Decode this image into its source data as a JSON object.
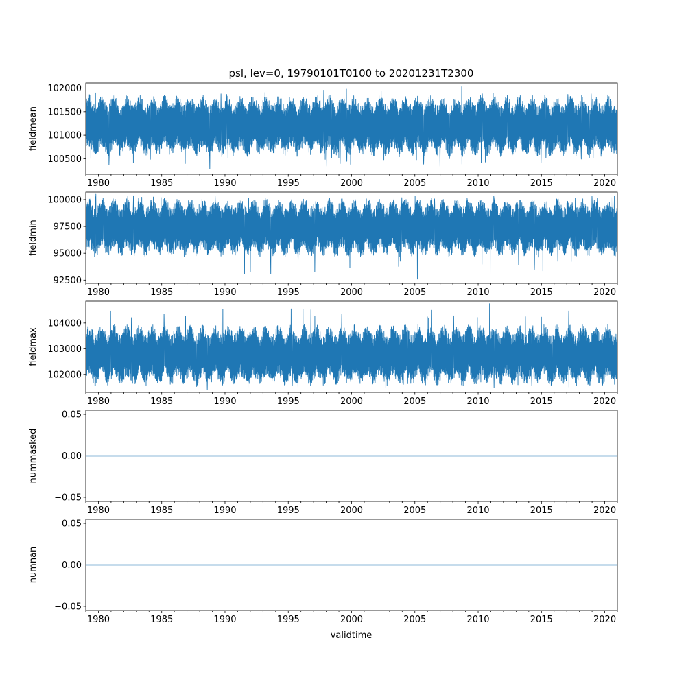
{
  "figure": {
    "title": "psl, lev=0, 19790101T0100 to 20201231T2300",
    "xlabel": "validtime"
  },
  "colors": {
    "line": "#1f77b4",
    "axes": "#000000",
    "background": "#ffffff"
  },
  "chart_data": [
    {
      "id": "fieldmean",
      "type": "line",
      "ylabel": "fieldmean",
      "xlim": [
        1979.0,
        2021.0
      ],
      "ylim": [
        100170,
        102110
      ],
      "yticks": [
        100500,
        101000,
        101500,
        102000
      ],
      "ytick_labels": [
        "100500",
        "101000",
        "101500",
        "102000"
      ],
      "xticks": [
        1980,
        1985,
        1990,
        1995,
        2000,
        2005,
        2010,
        2015,
        2020
      ],
      "xtick_labels": [
        "1980",
        "1985",
        "1990",
        "1995",
        "2000",
        "2005",
        "2010",
        "2015",
        "2020"
      ],
      "series": [
        {
          "name": "fieldmean",
          "note": "dense hourly series, envelope approximated",
          "center": 101200,
          "typical_range": [
            100650,
            101750
          ],
          "extremes": [
            100280,
            102030
          ],
          "peak": {
            "x": 2008.7,
            "y": 102030
          },
          "trough": {
            "x": 1988.8,
            "y": 100280
          }
        }
      ]
    },
    {
      "id": "fieldmin",
      "type": "line",
      "ylabel": "fieldmin",
      "xlim": [
        1979.0,
        2021.0
      ],
      "ylim": [
        92200,
        100700
      ],
      "yticks": [
        92500,
        95000,
        97500,
        100000
      ],
      "ytick_labels": [
        "92500",
        "95000",
        "97500",
        "100000"
      ],
      "xticks": [
        1980,
        1985,
        1990,
        1995,
        2000,
        2005,
        2010,
        2015,
        2020
      ],
      "xtick_labels": [
        "1980",
        "1985",
        "1990",
        "1995",
        "2000",
        "2005",
        "2010",
        "2015",
        "2020"
      ],
      "series": [
        {
          "name": "fieldmin",
          "note": "dense hourly series, envelope approximated",
          "center": 97400,
          "typical_range": [
            95200,
            99800
          ],
          "extremes": [
            92600,
            100500
          ],
          "peak": {
            "x": 1979.8,
            "y": 100500
          },
          "trough": {
            "x": 2005.2,
            "y": 92600
          }
        }
      ]
    },
    {
      "id": "fieldmax",
      "type": "line",
      "ylabel": "fieldmax",
      "xlim": [
        1979.0,
        2021.0
      ],
      "ylim": [
        101300,
        104850
      ],
      "yticks": [
        102000,
        103000,
        104000
      ],
      "ytick_labels": [
        "102000",
        "103000",
        "104000"
      ],
      "xticks": [
        1980,
        1985,
        1990,
        1995,
        2000,
        2005,
        2010,
        2015,
        2020
      ],
      "xtick_labels": [
        "1980",
        "1985",
        "1990",
        "1995",
        "2000",
        "2005",
        "2010",
        "2015",
        "2020"
      ],
      "series": [
        {
          "name": "fieldmax",
          "note": "dense hourly series, envelope approximated",
          "center": 102750,
          "typical_range": [
            101900,
            103900
          ],
          "extremes": [
            101400,
            104750
          ],
          "peak": {
            "x": 2010.9,
            "y": 104750
          },
          "trough": {
            "x": 1988.6,
            "y": 101400
          }
        }
      ]
    },
    {
      "id": "nummasked",
      "type": "line",
      "ylabel": "nummasked",
      "xlim": [
        1979.0,
        2021.0
      ],
      "ylim": [
        -0.055,
        0.055
      ],
      "yticks": [
        -0.05,
        0.0,
        0.05
      ],
      "ytick_labels": [
        "−0.05",
        "0.00",
        "0.05"
      ],
      "xticks": [
        1980,
        1985,
        1990,
        1995,
        2000,
        2005,
        2010,
        2015,
        2020
      ],
      "xtick_labels": [
        "1980",
        "1985",
        "1990",
        "1995",
        "2000",
        "2005",
        "2010",
        "2015",
        "2020"
      ],
      "series": [
        {
          "name": "nummasked",
          "x": [
            1979.0,
            2021.0
          ],
          "y": [
            0,
            0
          ]
        }
      ]
    },
    {
      "id": "numnan",
      "type": "line",
      "ylabel": "numnan",
      "xlim": [
        1979.0,
        2021.0
      ],
      "ylim": [
        -0.055,
        0.055
      ],
      "yticks": [
        -0.05,
        0.0,
        0.05
      ],
      "ytick_labels": [
        "−0.05",
        "0.00",
        "0.05"
      ],
      "xticks": [
        1980,
        1985,
        1990,
        1995,
        2000,
        2005,
        2010,
        2015,
        2020
      ],
      "xtick_labels": [
        "1980",
        "1985",
        "1990",
        "1995",
        "2000",
        "2005",
        "2010",
        "2015",
        "2020"
      ],
      "series": [
        {
          "name": "numnan",
          "x": [
            1979.0,
            2021.0
          ],
          "y": [
            0,
            0
          ]
        }
      ]
    }
  ]
}
